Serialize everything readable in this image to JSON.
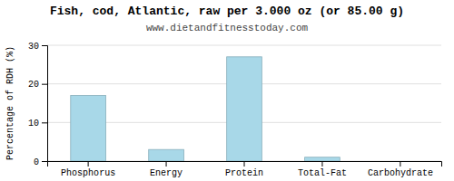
{
  "chart_data": {
    "type": "bar",
    "title": "Fish, cod, Atlantic, raw per 3.000 oz (or 85.00 g)",
    "subtitle": "www.dietandfitnesstoday.com",
    "categories": [
      "Phosphorus",
      "Energy",
      "Protein",
      "Total-Fat",
      "Carbohydrate"
    ],
    "values": [
      17,
      3,
      27,
      1,
      0
    ],
    "color": "#a8d8e8",
    "ylabel": "Percentage of RDH (%)",
    "ylim": [
      0,
      30
    ],
    "yticks": [
      0,
      10,
      20,
      30
    ],
    "grid": true
  }
}
